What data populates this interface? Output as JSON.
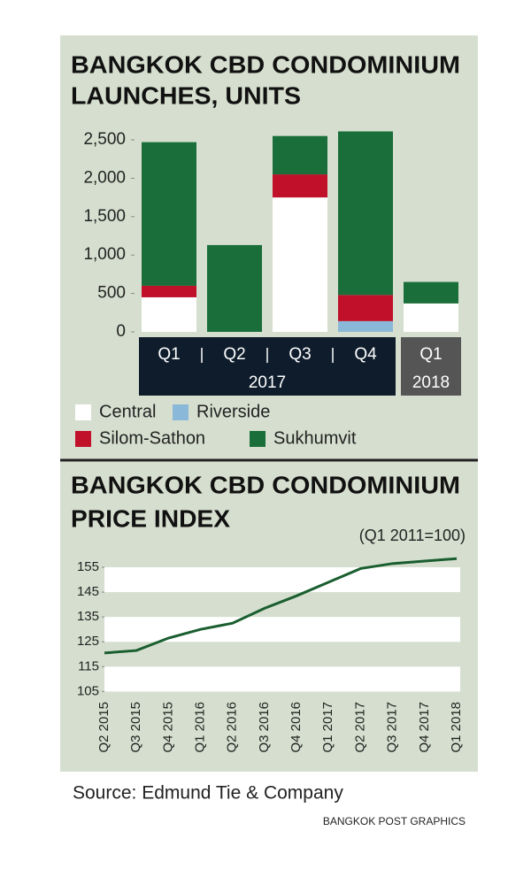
{
  "chart_data": [
    {
      "type": "bar",
      "stacked": true,
      "title": [
        "BANGKOK CBD CONDOMINIUM",
        "LAUNCHES, UNITS"
      ],
      "groups": [
        {
          "label": "2017",
          "categories": [
            "Q1",
            "Q2",
            "Q3",
            "Q4"
          ]
        },
        {
          "label": "2018",
          "categories": [
            "Q1"
          ]
        }
      ],
      "series": [
        {
          "name": "Central",
          "color": "#ffffff",
          "values": [
            450,
            0,
            1750,
            0,
            370
          ]
        },
        {
          "name": "Riverside",
          "color": "#8ab8d8",
          "values": [
            0,
            0,
            0,
            140,
            0
          ]
        },
        {
          "name": "Silom-Sathon",
          "color": "#c0102a",
          "values": [
            150,
            0,
            300,
            340,
            0
          ]
        },
        {
          "name": "Sukhumvit",
          "color": "#1a6e3a",
          "values": [
            1870,
            1130,
            500,
            2130,
            280
          ]
        }
      ],
      "ylim": [
        0,
        2650
      ],
      "yticks": [
        0,
        500,
        {
          "value": 1000,
          "label": "1,000"
        },
        {
          "value": 1500,
          "label": "1,500"
        },
        {
          "value": 2000,
          "label": "2,000"
        },
        {
          "value": 2500,
          "label": "2,500"
        }
      ],
      "grid": false
    },
    {
      "type": "line",
      "title": [
        "BANGKOK CBD CONDOMINIUM",
        "PRICE INDEX"
      ],
      "note": "(Q1 2011=100)",
      "categories": [
        "Q2 2015",
        "Q3 2015",
        "Q4 2015",
        "Q1 2016",
        "Q2 2016",
        "Q3 2016",
        "Q4 2016",
        "Q1 2017",
        "Q2 2017",
        "Q3 2017",
        "Q4 2017",
        "Q1 2018"
      ],
      "values": [
        120.5,
        121.5,
        126.5,
        130,
        132.5,
        138.5,
        143.5,
        149,
        154.5,
        156.5,
        157.5,
        158.5
      ],
      "color": "#1a5e30",
      "ylim": [
        103,
        160
      ],
      "yticks": [
        105,
        115,
        125,
        135,
        145,
        155
      ],
      "bands": true,
      "band_color": "#ffffff"
    }
  ],
  "source": "Source: Edmund Tie & Company",
  "credit": "BANGKOK POST GRAPHICS"
}
